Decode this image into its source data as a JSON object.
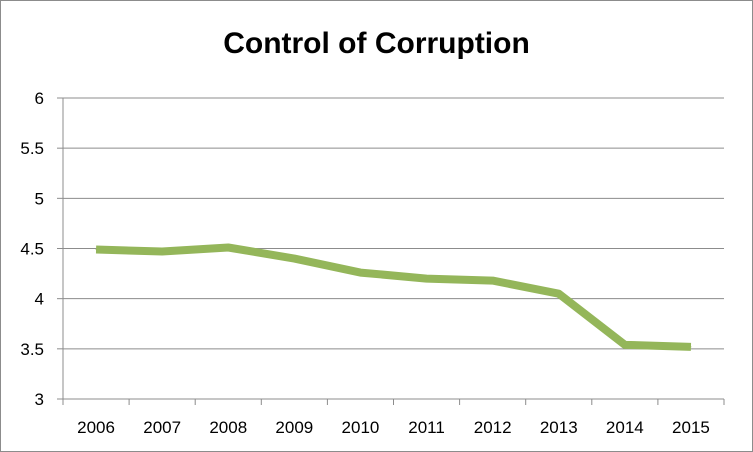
{
  "chart_data": {
    "type": "line",
    "title": "Control of Corruption",
    "xlabel": "",
    "ylabel": "",
    "categories": [
      "2006",
      "2007",
      "2008",
      "2009",
      "2010",
      "2011",
      "2012",
      "2013",
      "2014",
      "2015"
    ],
    "series": [
      {
        "values": [
          4.49,
          4.47,
          4.51,
          4.4,
          4.26,
          4.2,
          4.18,
          4.05,
          3.54,
          3.52
        ]
      }
    ],
    "ylim": [
      3,
      6
    ],
    "yticks": [
      "3",
      "3.5",
      "4",
      "4.5",
      "5",
      "5.5",
      "6"
    ],
    "grid": true,
    "legend": "none",
    "colors": {
      "line": "#94b65a",
      "grid": "#8c8c8c",
      "axis": "#8c8c8c"
    }
  }
}
